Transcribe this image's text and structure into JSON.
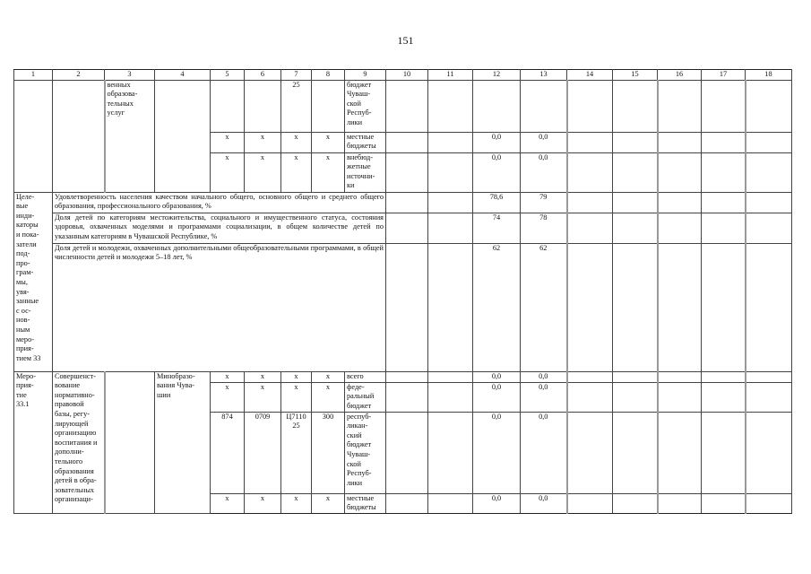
{
  "page_number": "151",
  "header": [
    "1",
    "2",
    "3",
    "4",
    "5",
    "6",
    "7",
    "8",
    "9",
    "10",
    "11",
    "12",
    "13",
    "14",
    "15",
    "16",
    "17",
    "18"
  ],
  "block1": {
    "col3": "венных\nобразова-\nтельных\nуслуг",
    "rows": [
      {
        "c5": "",
        "c6": "",
        "c7": "25",
        "c8": "",
        "c9": "бюджет\nЧуваш-\nской\nРеспуб-\nлики",
        "c12": "",
        "c13": ""
      },
      {
        "c5": "x",
        "c6": "x",
        "c7": "x",
        "c8": "x",
        "c9": "местные\nбюджеты",
        "c12": "0,0",
        "c13": "0,0"
      },
      {
        "c5": "x",
        "c6": "x",
        "c7": "x",
        "c8": "x",
        "c9": "внебюд-\nжетные\nисточни-\nки",
        "c12": "0,0",
        "c13": "0,0"
      }
    ]
  },
  "indicators": {
    "label": "Целе-\nвые\nинди-\nкаторы\nи пока-\nзатели\nпод-\nпро-\nграм-\nмы,\nувя-\nзанные\nс ос-\nнов-\nным\nмеро-\nприя-\nтием 33",
    "rows": [
      {
        "text": "Удовлетворенность населения качеством начального общего, основного общего и среднего общего образования, профессионального образования, %",
        "c12": "78,6",
        "c13": "79"
      },
      {
        "text": "Доля детей по категориям местожительства, социального и имущественного статуса, состояния здоровья, охваченных моделями и программами социализации, в общем количестве детей по указанным категориям в Чувашской Республике, %",
        "c12": "74",
        "c13": "78"
      },
      {
        "text": "Доля детей и молодежи, охваченных дополнительными общеобразовательными программами, в общей численности детей и молодежи 5–18 лет, %",
        "c12": "62",
        "c13": "62"
      }
    ]
  },
  "event": {
    "label": "Меро-\nприя-\nтие\n33.1",
    "name": "Совершенст-\nвование\nнормативно-\nправовой\nбазы, регу-\nлирующей\nорганизацию\nвоспитания и\nдополни-\nтельного\nобразования\nдетей в обра-\nзовательных\nорганизаци-",
    "executor": "Минобразо-\nвания Чува-\nшии",
    "rows": [
      {
        "c5": "x",
        "c6": "x",
        "c7": "x",
        "c8": "x",
        "c9": "всего",
        "c12": "0,0",
        "c13": "0,0"
      },
      {
        "c5": "x",
        "c6": "x",
        "c7": "x",
        "c8": "x",
        "c9": "феде-\nральный\nбюджет",
        "c12": "0,0",
        "c13": "0,0"
      },
      {
        "c5": "874",
        "c6": "0709",
        "c7": "Ц7110\n25",
        "c8": "300",
        "c9": "респуб-\nликан-\nский\nбюджет\nЧуваш-\nской\nРеспуб-\nлики",
        "c12": "0,0",
        "c13": "0,0"
      },
      {
        "c5": "x",
        "c6": "x",
        "c7": "x",
        "c8": "x",
        "c9": "местные\nбюджеты",
        "c12": "0,0",
        "c13": "0,0"
      }
    ]
  }
}
